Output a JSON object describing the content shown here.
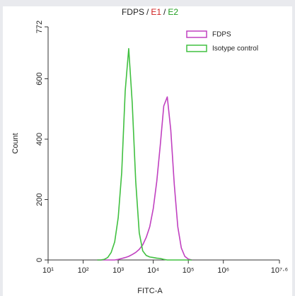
{
  "chart_data": {
    "type": "line",
    "title_parts": [
      {
        "text": "FDPS",
        "color": "#222222"
      },
      {
        "text": "/",
        "color": "#222222"
      },
      {
        "text": "E1",
        "color": "#d02020"
      },
      {
        "text": "/",
        "color": "#222222"
      },
      {
        "text": "E2",
        "color": "#20a020"
      }
    ],
    "x_label": "FITC-A",
    "y_label": "Count",
    "xscale": "log",
    "x": [
      251,
      316,
      398,
      501,
      631,
      794,
      1000,
      1259,
      1585,
      1995,
      2512,
      3162,
      3981,
      5012,
      6310,
      7943,
      10000,
      12589,
      15849,
      19953,
      25119,
      31623,
      39811,
      50119,
      63096,
      79433,
      100000,
      125893
    ],
    "series": [
      {
        "name": "FDPS",
        "color": "#c040c0",
        "values": [
          0,
          0,
          0,
          0,
          0,
          0,
          2,
          5,
          8,
          12,
          18,
          25,
          35,
          50,
          75,
          110,
          170,
          260,
          380,
          510,
          540,
          430,
          250,
          110,
          40,
          12,
          3,
          0
        ]
      },
      {
        "name": "Isotype control",
        "color": "#40c040",
        "values": [
          0,
          0,
          2,
          8,
          25,
          60,
          140,
          290,
          560,
          700,
          520,
          260,
          90,
          30,
          15,
          10,
          8,
          6,
          5,
          2,
          0,
          0,
          0,
          0,
          0,
          0,
          0,
          0
        ]
      }
    ],
    "xlim": [
      10,
      39810717
    ],
    "xticks": [
      {
        "value": 10,
        "label": "10¹"
      },
      {
        "value": 100,
        "label": "10²"
      },
      {
        "value": 1000,
        "label": "10³"
      },
      {
        "value": 10000,
        "label": "10⁴"
      },
      {
        "value": 100000,
        "label": "10⁵"
      },
      {
        "value": 1000000,
        "label": "10⁶"
      },
      {
        "value": 39810717,
        "label": "10⁷·⁶"
      }
    ],
    "ylim": [
      0,
      772
    ],
    "yticks": [
      0,
      200,
      400,
      600,
      772
    ],
    "legend": "upper right"
  }
}
